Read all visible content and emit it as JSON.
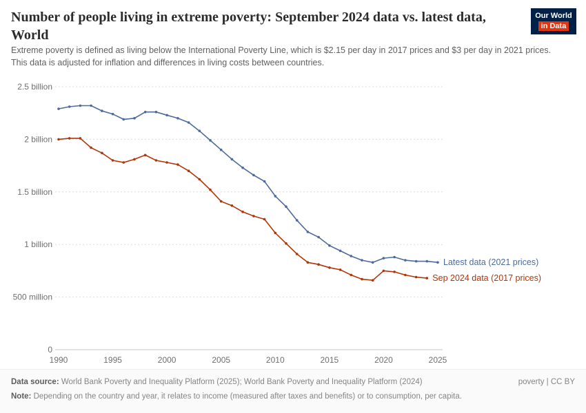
{
  "header": {
    "title": "Number of people living in extreme poverty: September 2024 data vs. latest data, World",
    "subtitle": "Extreme poverty is defined as living below the International Poverty Line, which is $2.15 per day in 2017 prices and $3 per day in 2021 prices. This data is adjusted for inflation and differences in living costs between countries.",
    "logo": {
      "line1": "Our World",
      "line2": "in Data",
      "bg": "#002147",
      "accent": "#e0350f"
    }
  },
  "chart_data": {
    "type": "line",
    "title": "Number of people living in extreme poverty: September 2024 data vs. latest data, World",
    "unit": "billions of people",
    "ylim": [
      0,
      2.5
    ],
    "x": [
      1990,
      1991,
      1992,
      1993,
      1994,
      1995,
      1996,
      1997,
      1998,
      1999,
      2000,
      2001,
      2002,
      2003,
      2004,
      2005,
      2006,
      2007,
      2008,
      2009,
      2010,
      2011,
      2012,
      2013,
      2014,
      2015,
      2016,
      2017,
      2018,
      2019,
      2020,
      2021,
      2022,
      2023,
      2024,
      2025
    ],
    "series": [
      {
        "name": "Latest data (2021 prices)",
        "color": "#4c6a9c",
        "values": [
          2.29,
          2.31,
          2.32,
          2.32,
          2.27,
          2.24,
          2.19,
          2.2,
          2.26,
          2.26,
          2.23,
          2.2,
          2.16,
          2.08,
          1.99,
          1.9,
          1.81,
          1.73,
          1.66,
          1.6,
          1.46,
          1.36,
          1.23,
          1.12,
          1.07,
          0.99,
          0.94,
          0.89,
          0.85,
          0.83,
          0.87,
          0.88,
          0.85,
          0.84,
          0.84,
          0.83
        ]
      },
      {
        "name": "Sep 2024 data (2017 prices)",
        "color": "#b13507",
        "values": [
          2.0,
          2.01,
          2.01,
          1.92,
          1.87,
          1.8,
          1.78,
          1.81,
          1.85,
          1.8,
          1.78,
          1.76,
          1.7,
          1.62,
          1.52,
          1.41,
          1.37,
          1.31,
          1.27,
          1.24,
          1.11,
          1.01,
          0.91,
          0.83,
          0.81,
          0.78,
          0.76,
          0.71,
          0.67,
          0.66,
          0.75,
          0.74,
          0.71,
          0.69,
          0.68
        ]
      }
    ],
    "yticks": [
      {
        "value": 0,
        "label": "0"
      },
      {
        "value": 0.5,
        "label": "500 million"
      },
      {
        "value": 1,
        "label": "1 billion"
      },
      {
        "value": 1.5,
        "label": "1.5 billion"
      },
      {
        "value": 2,
        "label": "2 billion"
      },
      {
        "value": 2.5,
        "label": "2.5 billion"
      }
    ],
    "xticks": [
      1990,
      1995,
      2000,
      2005,
      2010,
      2015,
      2020,
      2025
    ],
    "grid": "dashed-horizontal",
    "legend_position": "end-of-line-labels"
  },
  "footer": {
    "source_label": "Data source:",
    "source_text": " World Bank Poverty and Inequality Platform (2025); World Bank Poverty and Inequality Platform (2024)",
    "attribution": "poverty | CC BY",
    "note_label": "Note:",
    "note_text": " Depending on the country and year, it relates to income (measured after taxes and benefits) or to consumption, per capita."
  }
}
